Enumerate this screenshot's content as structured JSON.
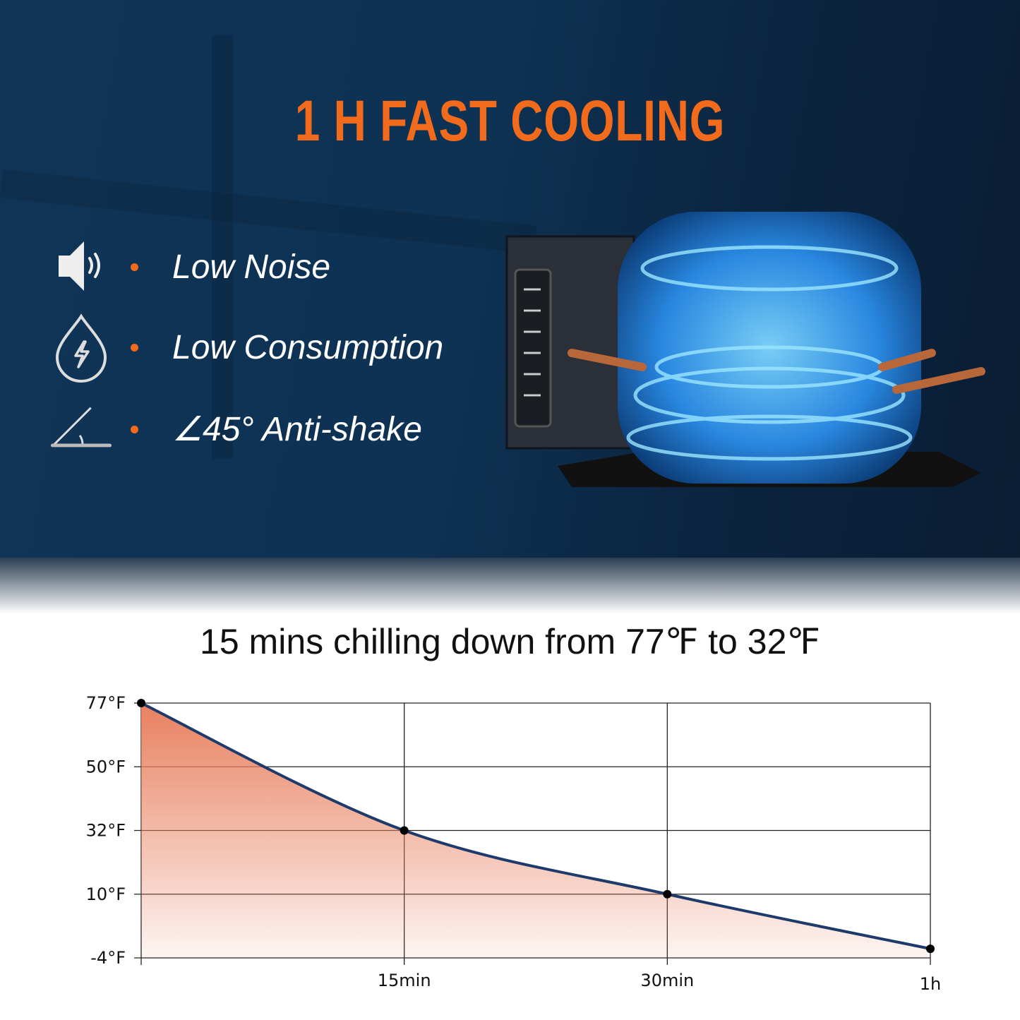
{
  "headline": "1 H FAST COOLING",
  "features": [
    {
      "icon": "speaker-icon",
      "label": "Low Noise"
    },
    {
      "icon": "drop-bolt-icon",
      "label": "Low Consumption"
    },
    {
      "icon": "angle-icon",
      "label": "∠45° Anti-shake"
    }
  ],
  "colors": {
    "accent": "#f26a1b",
    "background": "#0e3253",
    "line": "#1d3a6b",
    "fill": "#e8805f"
  },
  "chart_data": {
    "type": "area",
    "title": "15 mins chilling down from 77℉ to 32℉",
    "x": [
      "",
      "15min",
      "30min",
      "1h"
    ],
    "y_ticks": [
      "77°F",
      "50°F",
      "32°F",
      "10°F",
      "-4°F"
    ],
    "y_tick_values": [
      77,
      50,
      32,
      10,
      -4
    ],
    "values": [
      77,
      32,
      10,
      -2
    ],
    "grid": true,
    "legend": "none"
  }
}
